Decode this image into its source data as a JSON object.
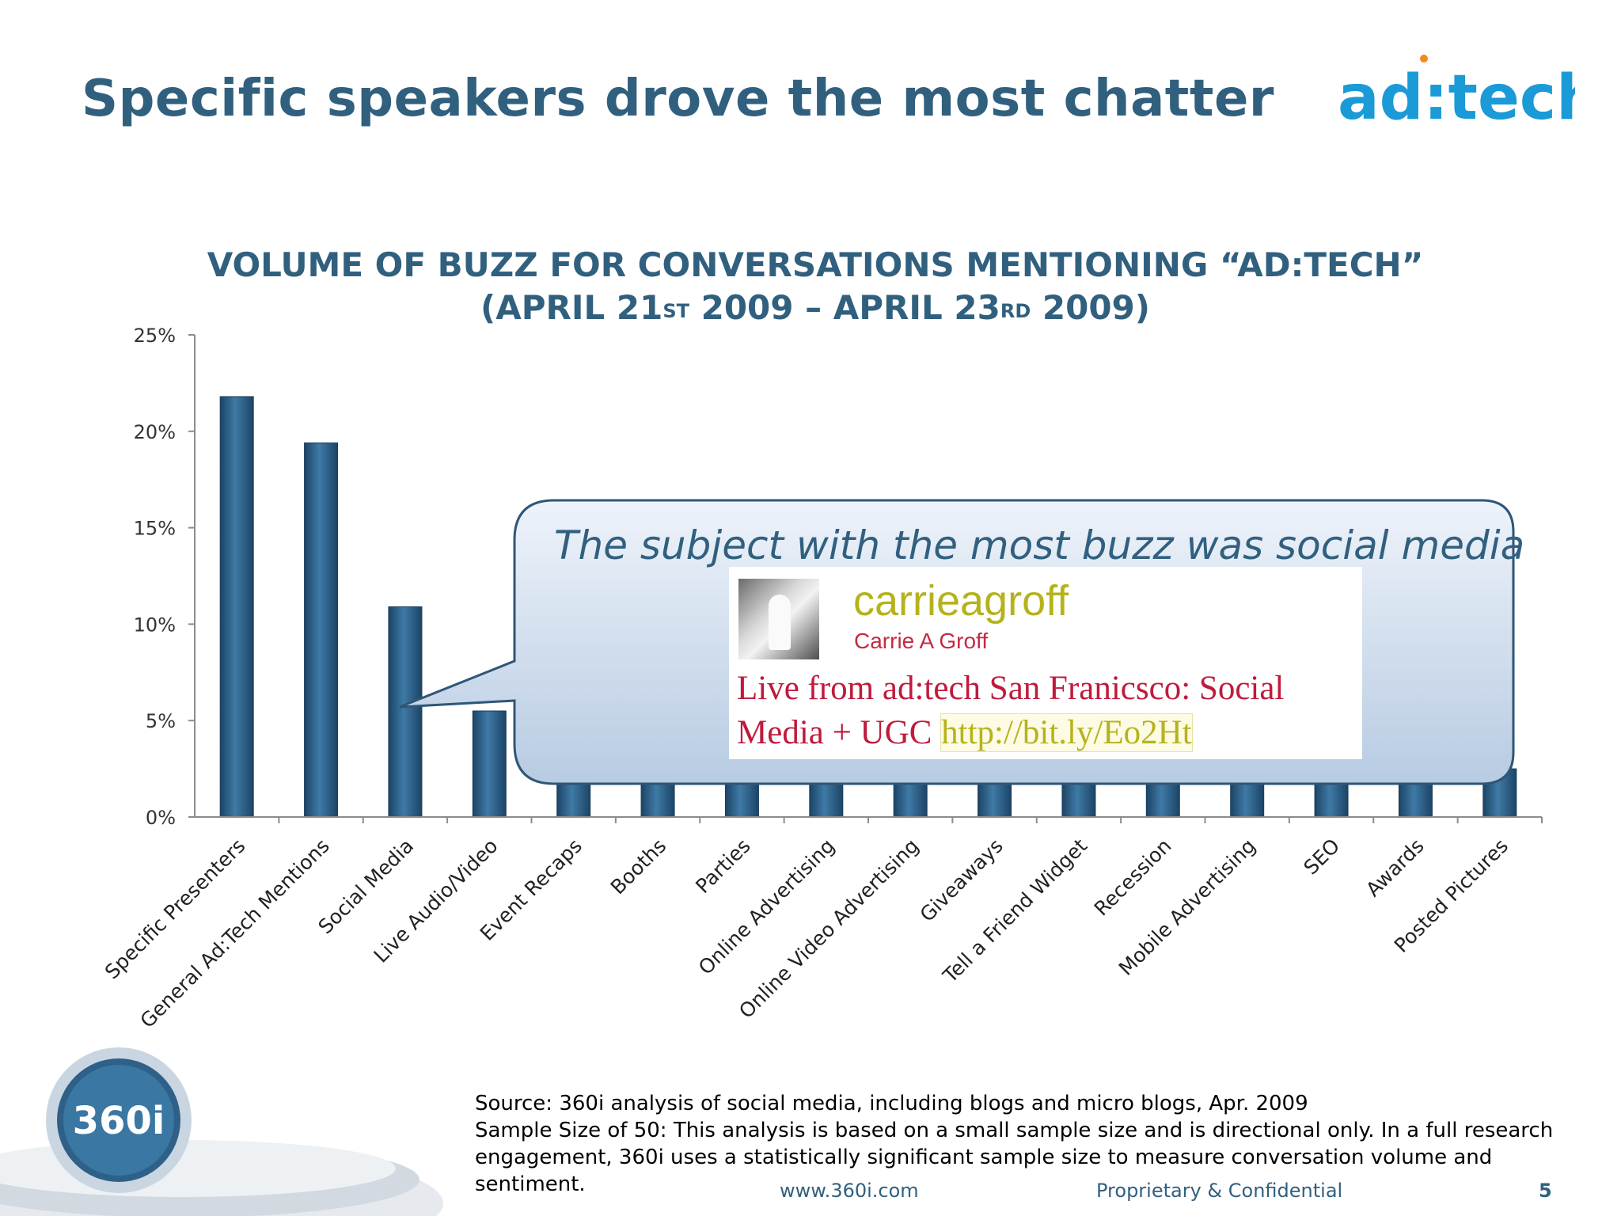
{
  "slide": {
    "title": "Specific speakers drove the most chatter",
    "logo_text": "ad:tech",
    "brand_mark": "360i"
  },
  "chart_data": {
    "type": "bar",
    "title_line1": "VOLUME OF BUZZ FOR CONVERSATIONS MENTIONING “AD:TECH”",
    "title_line2": {
      "pre": "(APRIL 21",
      "sup1": "ST",
      "mid": " 2009 – APRIL 23",
      "sup2": "RD",
      "post": " 2009)"
    },
    "categories": [
      "Specific Presenters",
      "General Ad:Tech Mentions",
      "Social Media",
      "Live Audio/Video",
      "Event Recaps",
      "Booths",
      "Parties",
      "Online Advertising",
      "Online Video Advertising",
      "Giveaways",
      "Tell a Friend Widget",
      "Recession",
      "Mobile Advertising",
      "SEO",
      "Awards",
      "Posted Pictures"
    ],
    "values": [
      21.8,
      19.4,
      10.9,
      5.5,
      4.5,
      4.0,
      4.0,
      3.5,
      3.5,
      3.0,
      3.0,
      3.0,
      3.0,
      3.0,
      2.5,
      2.5
    ],
    "yticks": [
      "0%",
      "5%",
      "10%",
      "15%",
      "20%",
      "25%"
    ],
    "ylim": [
      0,
      25
    ],
    "grid": false,
    "bar_color": "#2a5a80"
  },
  "callout": {
    "text": "The subject with the most buzz was social media",
    "tweet": {
      "username": "carrieagroff",
      "full_name": "Carrie A Groff",
      "message": "Live from ad:tech San Franicsco: Social Media + UGC",
      "link": "http://bit.ly/Eo2Ht"
    }
  },
  "footnote": {
    "source": "Source: 360i analysis of social media, including blogs and micro blogs, Apr. 2009",
    "sample": "Sample Size of 50: This analysis is based on a small sample size and is directional only. In a full research engagement, 360i uses a statistically significant sample size to measure conversation volume and sentiment."
  },
  "footer": {
    "url": "www.360i.com",
    "confidential": "Proprietary & Confidential",
    "page": "5"
  }
}
